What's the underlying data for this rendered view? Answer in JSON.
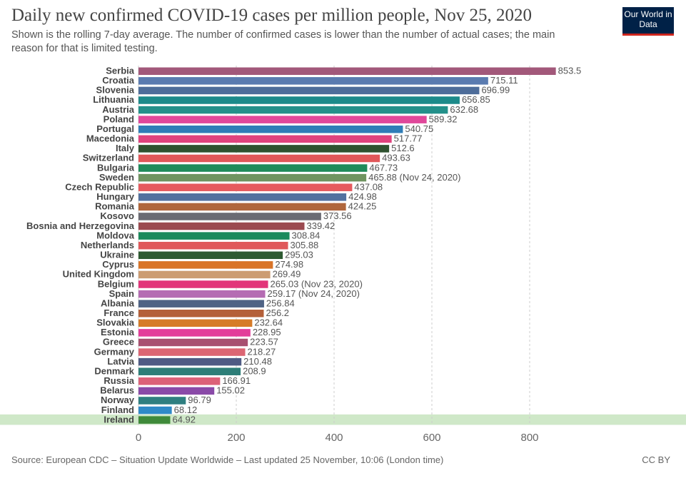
{
  "title": "Daily new confirmed COVID-19 cases per million people, Nov 25, 2020",
  "subtitle": "Shown is the rolling 7-day average. The number of confirmed cases is lower than the number of actual cases; the main reason for that is limited testing.",
  "logo": "Our World in Data",
  "source": "Source: European CDC – Situation Update Worldwide – Last updated 25 November, 10:06 (London time)",
  "license": "CC BY",
  "chart_data": {
    "type": "bar",
    "orientation": "horizontal",
    "xlim": [
      0,
      950
    ],
    "grid": true,
    "xticks": [
      0,
      200,
      400,
      600,
      800
    ],
    "highlighted": "Ireland",
    "categories": [
      "Serbia",
      "Croatia",
      "Slovenia",
      "Lithuania",
      "Austria",
      "Poland",
      "Portugal",
      "Macedonia",
      "Italy",
      "Switzerland",
      "Bulgaria",
      "Sweden",
      "Czech Republic",
      "Hungary",
      "Romania",
      "Kosovo",
      "Bosnia and Herzegovina",
      "Moldova",
      "Netherlands",
      "Ukraine",
      "Cyprus",
      "United Kingdom",
      "Belgium",
      "Spain",
      "Albania",
      "France",
      "Slovakia",
      "Estonia",
      "Greece",
      "Germany",
      "Latvia",
      "Denmark",
      "Russia",
      "Belarus",
      "Norway",
      "Finland",
      "Ireland"
    ],
    "values": [
      853.5,
      715.11,
      696.99,
      656.85,
      632.68,
      589.32,
      540.75,
      517.77,
      512.6,
      493.63,
      467.73,
      465.88,
      437.08,
      424.98,
      424.25,
      373.56,
      339.42,
      308.84,
      305.88,
      295.03,
      274.98,
      269.49,
      265.03,
      259.17,
      256.84,
      256.2,
      232.64,
      228.95,
      223.57,
      218.27,
      210.48,
      208.9,
      166.91,
      155.02,
      96.79,
      68.12,
      64.92
    ],
    "notes": [
      "",
      "",
      "",
      "",
      "",
      "",
      "",
      "",
      "",
      "",
      "",
      "(Nov 24, 2020)",
      "",
      "",
      "",
      "",
      "",
      "",
      "",
      "",
      "",
      "",
      "(Nov 23, 2020)",
      "(Nov 24, 2020)",
      "",
      "",
      "",
      "",
      "",
      "",
      "",
      "",
      "",
      "",
      "",
      "",
      ""
    ],
    "colors": [
      "#a2587a",
      "#5a7bb0",
      "#4e6d9a",
      "#1c8a8a",
      "#23908a",
      "#e0489a",
      "#2f7db7",
      "#e0437e",
      "#2f5230",
      "#e15759",
      "#1f8b5a",
      "#6f9460",
      "#e65a5e",
      "#52719f",
      "#b0663c",
      "#6b6b73",
      "#9b4a50",
      "#1b8a5c",
      "#e0585a",
      "#2e5a32",
      "#d97428",
      "#cc9c72",
      "#e2357a",
      "#b56cb3",
      "#4f6385",
      "#b46039",
      "#d67c28",
      "#e33d9a",
      "#a85070",
      "#dc6673",
      "#4f5b84",
      "#2e7e78",
      "#dc6178",
      "#8a4aa8",
      "#2f7f80",
      "#2f8ac7",
      "#3f8a3a"
    ]
  }
}
